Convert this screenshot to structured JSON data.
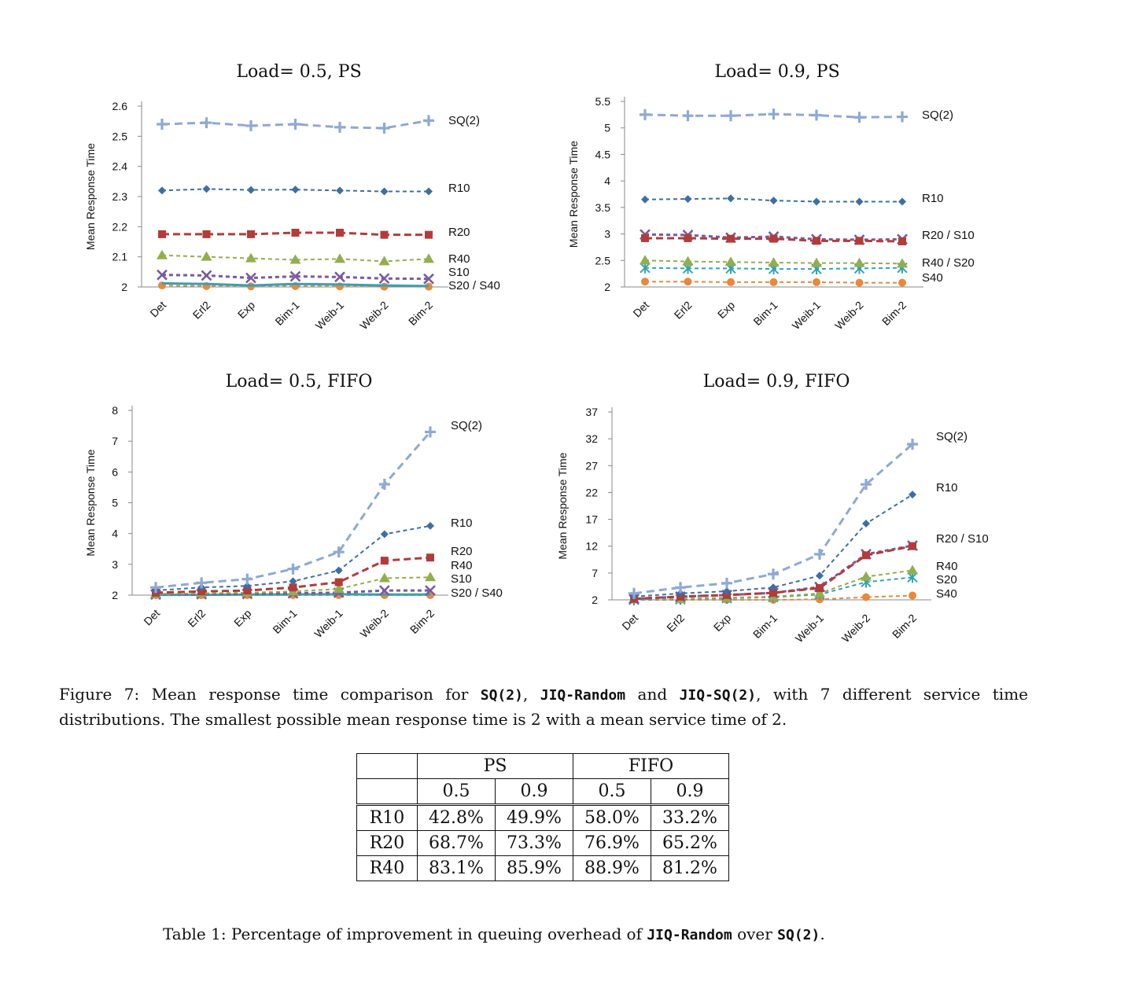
{
  "chart_data": [
    {
      "type": "line",
      "title": "Load= 0.5, PS",
      "ylabel": "Mean Response Time",
      "ylim": [
        2,
        2.6
      ],
      "yticks": [
        "2",
        "2.1",
        "2.2",
        "2.3",
        "2.4",
        "2.5",
        "2.6"
      ],
      "categories": [
        "Det",
        "Erl2",
        "Exp",
        "Bim-1",
        "Weib-1",
        "Weib-2",
        "Bim-2"
      ],
      "series": [
        {
          "name": "SQ(2)",
          "color": "#8ea9d4",
          "marker": "plus",
          "values": [
            2.54,
            2.545,
            2.535,
            2.54,
            2.53,
            2.527,
            2.552
          ]
        },
        {
          "name": "R10",
          "color": "#3d6fa6",
          "marker": "diamond",
          "values": [
            2.32,
            2.325,
            2.322,
            2.323,
            2.32,
            2.317,
            2.317
          ]
        },
        {
          "name": "R20",
          "color": "#b23c3a",
          "marker": "square",
          "values": [
            2.175,
            2.175,
            2.175,
            2.18,
            2.18,
            2.173,
            2.173
          ]
        },
        {
          "name": "R40",
          "color": "#93ae4c",
          "marker": "triangle",
          "values": [
            2.105,
            2.1,
            2.095,
            2.09,
            2.093,
            2.085,
            2.093
          ]
        },
        {
          "name": "S10",
          "color": "#7b5aa0",
          "marker": "x",
          "values": [
            2.04,
            2.038,
            2.03,
            2.035,
            2.033,
            2.028,
            2.027
          ]
        },
        {
          "name": "S20",
          "color": "#35a2b5",
          "marker": "none",
          "values": [
            2.012,
            2.01,
            2.005,
            2.01,
            2.008,
            2.005,
            2.003
          ]
        },
        {
          "name": "S40",
          "color": "#e8893a",
          "marker": "circle",
          "values": [
            2.005,
            2.003,
            2.002,
            2.003,
            2.002,
            2.001,
            2.001
          ]
        }
      ],
      "labels": [
        "SQ(2)",
        "R10",
        "R20",
        "R40",
        "S10",
        "S20 / S40"
      ]
    },
    {
      "type": "line",
      "title": "Load= 0.9, PS",
      "ylabel": "Mean Response Time",
      "ylim": [
        2,
        5.5
      ],
      "yticks": [
        "2",
        "2.5",
        "3",
        "3.5",
        "4",
        "4.5",
        "5",
        "5.5"
      ],
      "categories": [
        "Det",
        "Erl2",
        "Exp",
        "Bim-1",
        "Weib-1",
        "Weib-2",
        "Bim-2"
      ],
      "series": [
        {
          "name": "SQ(2)",
          "color": "#8ea9d4",
          "marker": "plus",
          "values": [
            5.25,
            5.23,
            5.23,
            5.26,
            5.24,
            5.2,
            5.21
          ]
        },
        {
          "name": "R10",
          "color": "#3d6fa6",
          "marker": "diamond",
          "values": [
            3.65,
            3.66,
            3.67,
            3.63,
            3.61,
            3.61,
            3.61
          ]
        },
        {
          "name": "R20",
          "color": "#b23c3a",
          "marker": "square",
          "values": [
            2.92,
            2.92,
            2.91,
            2.91,
            2.87,
            2.87,
            2.86
          ]
        },
        {
          "name": "S10",
          "color": "#7b5aa0",
          "marker": "x",
          "values": [
            2.99,
            2.98,
            2.93,
            2.95,
            2.9,
            2.89,
            2.9
          ]
        },
        {
          "name": "R40",
          "color": "#93ae4c",
          "marker": "triangle",
          "values": [
            2.5,
            2.48,
            2.47,
            2.46,
            2.45,
            2.45,
            2.44
          ]
        },
        {
          "name": "S20",
          "color": "#35a2b5",
          "marker": "star",
          "values": [
            2.36,
            2.35,
            2.35,
            2.34,
            2.34,
            2.35,
            2.36
          ]
        },
        {
          "name": "S40",
          "color": "#e8893a",
          "marker": "circle",
          "values": [
            2.1,
            2.1,
            2.09,
            2.09,
            2.09,
            2.08,
            2.08
          ]
        }
      ],
      "labels": [
        "SQ(2)",
        "R10",
        "R20 / S10",
        "R40 / S20",
        "S40"
      ]
    },
    {
      "type": "line",
      "title": "Load= 0.5, FIFO",
      "ylabel": "Mean Response Time",
      "ylim": [
        2,
        8
      ],
      "yticks": [
        "2",
        "3",
        "4",
        "5",
        "6",
        "7",
        "8"
      ],
      "categories": [
        "Det",
        "Erl2",
        "Exp",
        "Bim-1",
        "Weib-1",
        "Weib-2",
        "Bim-2"
      ],
      "series": [
        {
          "name": "SQ(2)",
          "color": "#8ea9d4",
          "marker": "plus",
          "values": [
            2.25,
            2.4,
            2.52,
            2.85,
            3.4,
            5.6,
            7.3
          ]
        },
        {
          "name": "R10",
          "color": "#3d6fa6",
          "marker": "diamond",
          "values": [
            2.15,
            2.25,
            2.3,
            2.45,
            2.8,
            3.98,
            4.25
          ]
        },
        {
          "name": "R20",
          "color": "#b23c3a",
          "marker": "square",
          "values": [
            2.08,
            2.12,
            2.15,
            2.25,
            2.42,
            3.12,
            3.22
          ]
        },
        {
          "name": "R40",
          "color": "#93ae4c",
          "marker": "triangle",
          "values": [
            2.04,
            2.06,
            2.08,
            2.12,
            2.2,
            2.55,
            2.58
          ]
        },
        {
          "name": "S10",
          "color": "#7b5aa0",
          "marker": "x",
          "values": [
            2.02,
            2.03,
            2.04,
            2.06,
            2.08,
            2.15,
            2.15
          ]
        },
        {
          "name": "S20",
          "color": "#35a2b5",
          "marker": "none",
          "values": [
            2.01,
            2.01,
            2.02,
            2.02,
            2.03,
            2.02,
            2.02
          ]
        },
        {
          "name": "S40",
          "color": "#e8893a",
          "marker": "circle",
          "values": [
            2.0,
            2.0,
            2.0,
            2.0,
            2.0,
            2.0,
            2.0
          ]
        }
      ],
      "labels": [
        "SQ(2)",
        "R10",
        "R20",
        "R40",
        "S10",
        "S20 / S40"
      ]
    },
    {
      "type": "line",
      "title": "Load= 0.9, FIFO",
      "ylabel": "Mean Response Time",
      "ylim": [
        2,
        37
      ],
      "yticks": [
        "2",
        "7",
        "12",
        "17",
        "22",
        "27",
        "32",
        "37"
      ],
      "categories": [
        "Det",
        "Erl2",
        "Exp",
        "Bim-1",
        "Weib-1",
        "Weib-2",
        "Bim-2"
      ],
      "series": [
        {
          "name": "SQ(2)",
          "color": "#8ea9d4",
          "marker": "plus",
          "values": [
            3.2,
            4.3,
            5.1,
            6.8,
            10.5,
            23.5,
            31.0
          ]
        },
        {
          "name": "R10",
          "color": "#3d6fa6",
          "marker": "diamond",
          "values": [
            2.6,
            3.2,
            3.6,
            4.3,
            6.5,
            16.2,
            21.6
          ]
        },
        {
          "name": "R20",
          "color": "#b23c3a",
          "marker": "square",
          "values": [
            2.2,
            2.6,
            2.9,
            3.3,
            4.2,
            10.3,
            12.0
          ]
        },
        {
          "name": "S10",
          "color": "#7b5aa0",
          "marker": "x",
          "values": [
            2.2,
            2.6,
            2.9,
            3.3,
            4.4,
            10.5,
            12.1
          ]
        },
        {
          "name": "R40",
          "color": "#93ae4c",
          "marker": "triangle",
          "values": [
            2.1,
            2.2,
            2.4,
            2.6,
            3.2,
            6.3,
            7.5
          ]
        },
        {
          "name": "S20",
          "color": "#35a2b5",
          "marker": "star",
          "values": [
            2.0,
            2.1,
            2.3,
            2.5,
            3.0,
            5.3,
            6.2
          ]
        },
        {
          "name": "S40",
          "color": "#e8893a",
          "marker": "circle",
          "values": [
            2.0,
            2.0,
            2.0,
            2.0,
            2.1,
            2.5,
            2.8
          ]
        }
      ],
      "labels": [
        "SQ(2)",
        "R10",
        "R20 / S10",
        "R40",
        "S20",
        "S40"
      ]
    }
  ],
  "figure_caption": {
    "t1": "Figure 7:  Mean response time comparison for ",
    "c1": "SQ(2)",
    "t2": ", ",
    "c2": "JIQ-Random",
    "t3": " and ",
    "c3": "JIQ-SQ(2)",
    "t4": ", with 7 different service time distributions. The smallest possible mean response time is 2 with a mean service time of 2."
  },
  "table": {
    "groups": [
      "PS",
      "FIFO"
    ],
    "subheaders": [
      "0.5",
      "0.9",
      "0.5",
      "0.9"
    ],
    "rows": [
      {
        "label": "R10",
        "cells": [
          "42.8%",
          "49.9%",
          "58.0%",
          "33.2%"
        ]
      },
      {
        "label": "R20",
        "cells": [
          "68.7%",
          "73.3%",
          "76.9%",
          "65.2%"
        ]
      },
      {
        "label": "R40",
        "cells": [
          "83.1%",
          "85.9%",
          "88.9%",
          "81.2%"
        ]
      }
    ]
  },
  "table_caption": {
    "t1": "Table 1: Percentage of improvement in queuing overhead of ",
    "c1": "JIQ-Random",
    "t2": " over ",
    "c2": "SQ(2)",
    "t3": "."
  }
}
